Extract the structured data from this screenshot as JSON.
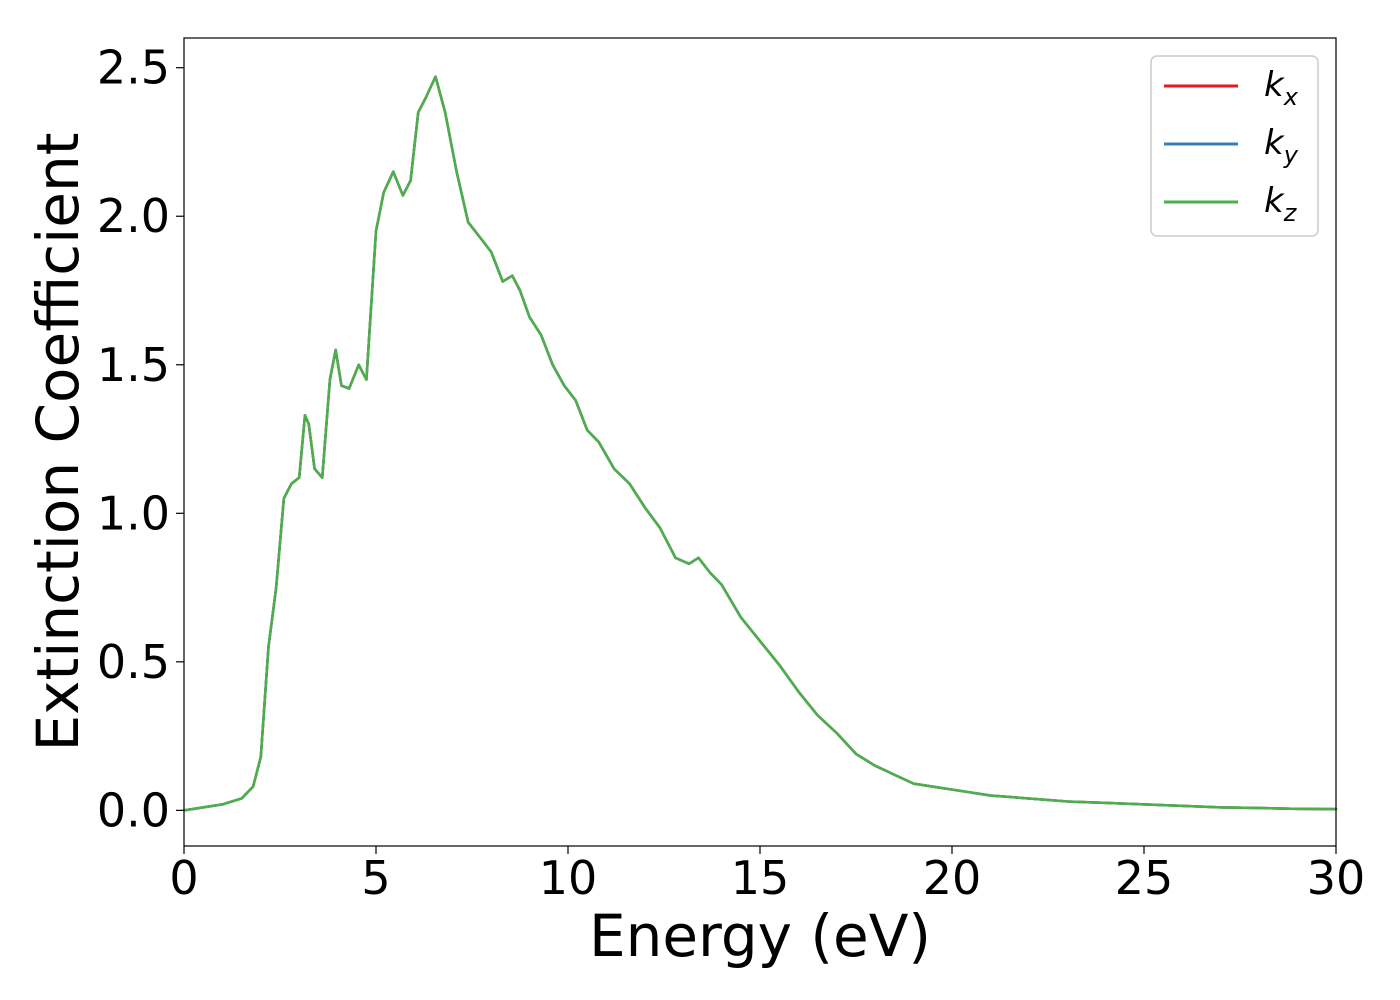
{
  "chart_data": {
    "type": "line",
    "xlabel": "Energy (eV)",
    "ylabel": "Extinction Coefficient",
    "xlim": [
      0,
      30
    ],
    "ylim": [
      -0.12,
      2.6
    ],
    "x_ticks": [
      0,
      5,
      10,
      15,
      20,
      25,
      30
    ],
    "y_ticks": [
      0.0,
      0.5,
      1.0,
      1.5,
      2.0,
      2.5
    ],
    "x_tick_labels": [
      "0",
      "5",
      "10",
      "15",
      "20",
      "25",
      "30"
    ],
    "y_tick_labels": [
      "0.0",
      "0.5",
      "1.0",
      "1.5",
      "2.0",
      "2.5"
    ],
    "grid": false,
    "legend_position": "top-right",
    "x": [
      0,
      0.5,
      1.0,
      1.5,
      1.8,
      2.0,
      2.2,
      2.4,
      2.6,
      2.8,
      3.0,
      3.15,
      3.25,
      3.4,
      3.6,
      3.8,
      3.95,
      4.1,
      4.3,
      4.55,
      4.75,
      5.0,
      5.2,
      5.45,
      5.7,
      5.9,
      6.1,
      6.3,
      6.55,
      6.8,
      7.1,
      7.4,
      7.7,
      8.0,
      8.3,
      8.55,
      8.75,
      9.0,
      9.3,
      9.6,
      9.9,
      10.2,
      10.5,
      10.8,
      11.2,
      11.6,
      12.0,
      12.4,
      12.8,
      13.15,
      13.4,
      13.7,
      14.0,
      14.5,
      15.0,
      15.5,
      16.0,
      16.5,
      17.0,
      17.5,
      18.0,
      18.5,
      19.0,
      19.5,
      20.0,
      21.0,
      22.0,
      23.0,
      24.0,
      25.0,
      26.0,
      27.0,
      28.0,
      29.0,
      30.0
    ],
    "series": [
      {
        "name": "k_x",
        "color": "#e41a1c",
        "values": [
          0.0,
          0.01,
          0.02,
          0.04,
          0.08,
          0.18,
          0.55,
          0.75,
          1.05,
          1.1,
          1.12,
          1.33,
          1.3,
          1.15,
          1.12,
          1.45,
          1.55,
          1.43,
          1.42,
          1.5,
          1.45,
          1.95,
          2.08,
          2.15,
          2.07,
          2.12,
          2.35,
          2.4,
          2.47,
          2.35,
          2.15,
          1.98,
          1.93,
          1.88,
          1.78,
          1.8,
          1.75,
          1.66,
          1.6,
          1.5,
          1.43,
          1.38,
          1.28,
          1.24,
          1.15,
          1.1,
          1.02,
          0.95,
          0.85,
          0.83,
          0.85,
          0.8,
          0.76,
          0.65,
          0.57,
          0.49,
          0.4,
          0.32,
          0.26,
          0.19,
          0.15,
          0.12,
          0.09,
          0.08,
          0.07,
          0.05,
          0.04,
          0.03,
          0.025,
          0.02,
          0.015,
          0.01,
          0.008,
          0.005,
          0.004
        ]
      },
      {
        "name": "k_y",
        "color": "#377eb8",
        "values": [
          0.0,
          0.01,
          0.02,
          0.04,
          0.08,
          0.18,
          0.55,
          0.75,
          1.05,
          1.1,
          1.12,
          1.33,
          1.3,
          1.15,
          1.12,
          1.45,
          1.55,
          1.43,
          1.42,
          1.5,
          1.45,
          1.95,
          2.08,
          2.15,
          2.07,
          2.12,
          2.35,
          2.4,
          2.47,
          2.35,
          2.15,
          1.98,
          1.93,
          1.88,
          1.78,
          1.8,
          1.75,
          1.66,
          1.6,
          1.5,
          1.43,
          1.38,
          1.28,
          1.24,
          1.15,
          1.1,
          1.02,
          0.95,
          0.85,
          0.83,
          0.85,
          0.8,
          0.76,
          0.65,
          0.57,
          0.49,
          0.4,
          0.32,
          0.26,
          0.19,
          0.15,
          0.12,
          0.09,
          0.08,
          0.07,
          0.05,
          0.04,
          0.03,
          0.025,
          0.02,
          0.015,
          0.01,
          0.008,
          0.005,
          0.004
        ]
      },
      {
        "name": "k_z",
        "color": "#4daf4a",
        "values": [
          0.0,
          0.01,
          0.02,
          0.04,
          0.08,
          0.18,
          0.55,
          0.75,
          1.05,
          1.1,
          1.12,
          1.33,
          1.3,
          1.15,
          1.12,
          1.45,
          1.55,
          1.43,
          1.42,
          1.5,
          1.45,
          1.95,
          2.08,
          2.15,
          2.07,
          2.12,
          2.35,
          2.4,
          2.47,
          2.35,
          2.15,
          1.98,
          1.93,
          1.88,
          1.78,
          1.8,
          1.75,
          1.66,
          1.6,
          1.5,
          1.43,
          1.38,
          1.28,
          1.24,
          1.15,
          1.1,
          1.02,
          0.95,
          0.85,
          0.83,
          0.85,
          0.8,
          0.76,
          0.65,
          0.57,
          0.49,
          0.4,
          0.32,
          0.26,
          0.19,
          0.15,
          0.12,
          0.09,
          0.08,
          0.07,
          0.05,
          0.04,
          0.03,
          0.025,
          0.02,
          0.015,
          0.01,
          0.008,
          0.005,
          0.004
        ]
      }
    ],
    "legend": [
      {
        "base": "k",
        "sub": "x",
        "color": "#e41a1c"
      },
      {
        "base": "k",
        "sub": "y",
        "color": "#377eb8"
      },
      {
        "base": "k",
        "sub": "z",
        "color": "#4daf4a"
      }
    ]
  }
}
